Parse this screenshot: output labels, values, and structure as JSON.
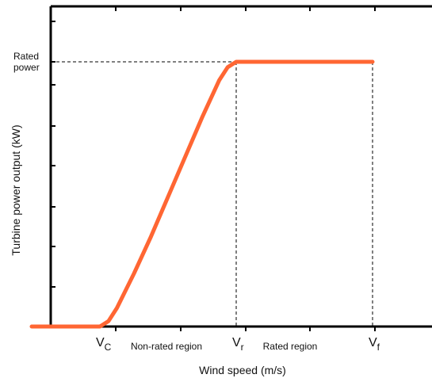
{
  "chart_data": {
    "type": "line",
    "title": "",
    "xlabel": "Wind speed  (m/s)",
    "ylabel": "Turbine  power  output  (kW)",
    "xlim": [
      0,
      10
    ],
    "ylim": [
      0,
      1
    ],
    "grid": false,
    "y_marker": {
      "label_line1": "Rated",
      "label_line2": "power",
      "value": 1.0
    },
    "x_markers": [
      {
        "name": "vc",
        "main": "V",
        "sub": "C",
        "value": 2.0
      },
      {
        "name": "vr",
        "main": "V",
        "sub": "r",
        "value": 6.0
      },
      {
        "name": "vf",
        "main": "V",
        "sub": "f",
        "value": 10.0
      }
    ],
    "region_labels": [
      {
        "name": "non-rated-region",
        "text": "Non-rated  region",
        "x": 4.0
      },
      {
        "name": "rated-region",
        "text": "Rated  region",
        "x": 8.0
      }
    ],
    "series": [
      {
        "color": "#ff6633",
        "points": [
          [
            0.0,
            0.0
          ],
          [
            2.0,
            0.0
          ],
          [
            2.25,
            0.02
          ],
          [
            2.5,
            0.07
          ],
          [
            3.0,
            0.2
          ],
          [
            3.5,
            0.34
          ],
          [
            4.0,
            0.49
          ],
          [
            4.5,
            0.64
          ],
          [
            5.0,
            0.79
          ],
          [
            5.5,
            0.93
          ],
          [
            5.75,
            0.98
          ],
          [
            6.0,
            1.0
          ],
          [
            8.0,
            1.0
          ],
          [
            10.0,
            1.0
          ]
        ]
      }
    ]
  }
}
